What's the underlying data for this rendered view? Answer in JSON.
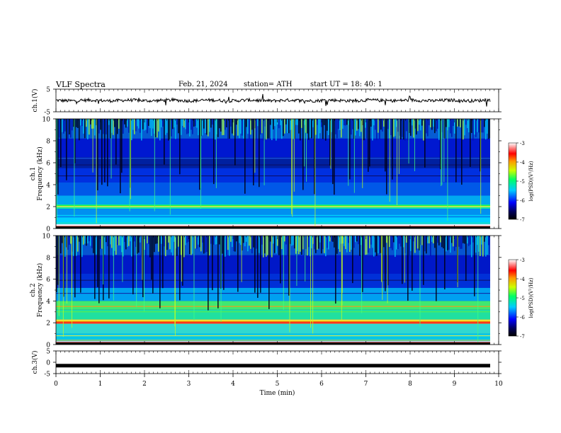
{
  "header": {
    "title": "VLF  Spectra",
    "date": "Feb. 21, 2024",
    "station": "station= ATH",
    "start_ut": "start  UT  =    18: 40: 1"
  },
  "chart_data": [
    {
      "type": "line",
      "ylabel": "ch.1(V)",
      "ylim": [
        -5,
        5
      ],
      "yticks": [
        "5",
        "-5"
      ],
      "xlim": [
        0,
        10
      ],
      "description_series": "waveform amplitude near 0 V with spikes",
      "series": [
        {
          "values_approx_mean": 0
        }
      ]
    },
    {
      "type": "heatmap",
      "ylabel": "ch.1\nFrequency (kHz)",
      "ylabel_lines": [
        "ch.1",
        "Frequency (kHz)"
      ],
      "ylim": [
        0,
        10
      ],
      "yticks": [
        "0",
        "2",
        "4",
        "6",
        "8",
        "10"
      ],
      "xlim": [
        0,
        10
      ],
      "colorbar": {
        "label": "log(PSD)(V²/Hz)",
        "range": [
          -7,
          -3
        ],
        "ticks": [
          "-3",
          "-4",
          "-5",
          "-6",
          "-7"
        ]
      }
    },
    {
      "type": "heatmap",
      "ylabel": "ch.2\nFrequency (kHz)",
      "ylabel_lines": [
        "ch.2",
        "Frequency (kHz)"
      ],
      "ylim": [
        0,
        10
      ],
      "yticks": [
        "0",
        "2",
        "4",
        "6",
        "8",
        "10"
      ],
      "xlim": [
        0,
        10
      ],
      "colorbar": {
        "label": "log(PSD)(V²/Hz)",
        "range": [
          -7,
          -3
        ],
        "ticks": [
          "-3",
          "-4",
          "-5",
          "-6",
          "-7"
        ]
      }
    },
    {
      "type": "line",
      "ylabel": "ch.3(V)",
      "ylim": [
        -5,
        5
      ],
      "yticks": [
        "5",
        "0",
        "-5"
      ],
      "xlim": [
        0,
        10
      ],
      "series": [
        {
          "values_approx_mean": -1.5
        }
      ]
    }
  ],
  "xaxis": {
    "label": "Time  (min)",
    "ticks": [
      "0",
      "1",
      "2",
      "3",
      "4",
      "5",
      "6",
      "7",
      "8",
      "9",
      "10"
    ],
    "range": [
      0,
      10
    ],
    "data_end": 9.8
  }
}
